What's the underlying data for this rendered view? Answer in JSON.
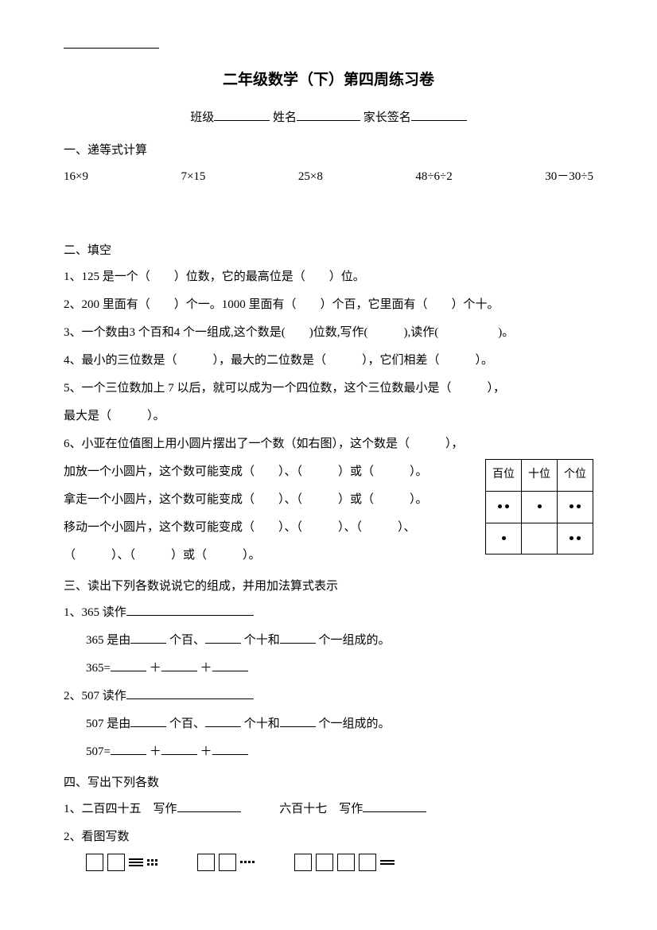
{
  "title": "二年级数学（下）第四周练习卷",
  "info": {
    "class": "班级",
    "name": "姓名",
    "sign": "家长签名"
  },
  "s1": {
    "head": "一、递等式计算",
    "items": [
      "16×9",
      "7×15",
      "25×8",
      "48÷6÷2",
      "30－30÷5"
    ]
  },
  "s2": {
    "head": "二、填空",
    "q1": "1、125 是一个（　　）位数，它的最高位是（　　）位。",
    "q2": "2、200 里面有（　　）个一。1000 里面有（　　）个百，它里面有（　　）个十。",
    "q3": "3、一个数由3 个百和4 个一组成,这个数是(　　)位数,写作(　　　),读作(　　　　　)。",
    "q4": "4、最小的三位数是（　　　），最大的二位数是（　　　），它们相差（　　　）。",
    "q5": "5、一个三位数加上 7 以后，就可以成为一个四位数，这个三位数最小是（　　　），",
    "q5b": "最大是（　　　）。",
    "q6a": "6、小亚在位值图上用小圆片摆出了一个数（如右图），这个数是（　　　），",
    "q6b": "加放一个小圆片，这个数可能变成（　　）、（　　　）或（　　　）。",
    "q6c": "拿走一个小圆片，这个数可能变成（　　）、（　　　）或（　　　）。",
    "q6d": "移动一个小圆片，这个数可能变成（　　）、（　　　）、（　　　）、",
    "q6e": "（　　　）、（　　　）或（　　　）。"
  },
  "placeTable": {
    "h1": "百位",
    "h2": "十位",
    "h3": "个位"
  },
  "s3": {
    "head": "三、读出下列各数说说它的组成，并用加法算式表示",
    "q1a": "1、365 读作",
    "q1b_pre": "365 是由",
    "q1b_p1": " 个百、",
    "q1b_p2": " 个十和",
    "q1b_p3": " 个一组成的。",
    "q1c": "365=",
    "q2a": "2、507 读作",
    "q2b_pre": "507 是由",
    "q2b_p1": " 个百、",
    "q2b_p2": " 个十和",
    "q2b_p3": " 个一组成的。",
    "q2c": "507="
  },
  "s4": {
    "head": "四、写出下列各数",
    "q1a": "1、二百四十五　写作",
    "q1b": "　　　六百十七　写作",
    "q2": "2、看图写数"
  },
  "plus": "＋"
}
